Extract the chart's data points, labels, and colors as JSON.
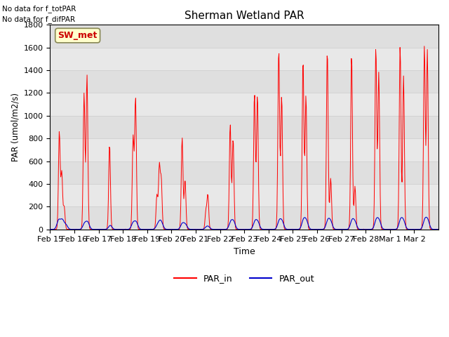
{
  "title": "Sherman Wetland PAR",
  "ylabel": "PAR (umol/m2/s)",
  "xlabel": "Time",
  "ylim": [
    0,
    1800
  ],
  "annotation_lines": [
    "No data for f_totPAR",
    "No data for f_difPAR"
  ],
  "legend_box_label": "SW_met",
  "legend_box_color": "#ffffcc",
  "legend_box_border": "#888855",
  "legend_box_text": "#cc0000",
  "line1_color": "#ff0000",
  "line1_label": "PAR_in",
  "line2_color": "#0000cc",
  "line2_label": "PAR_out",
  "grid_color": "#d0d0d0",
  "background_color": "#e8e8e8",
  "n_days": 16,
  "tick_labels": [
    "Feb 15",
    "Feb 16",
    "Feb 17",
    "Feb 18",
    "Feb 19",
    "Feb 20",
    "Feb 21",
    "Feb 22",
    "Feb 23",
    "Feb 24",
    "Feb 25",
    "Feb 26",
    "Feb 27",
    "Feb 28",
    "Mar 1",
    "Mar 2"
  ],
  "yticks": [
    0,
    200,
    400,
    600,
    800,
    1000,
    1200,
    1400,
    1600,
    1800
  ]
}
